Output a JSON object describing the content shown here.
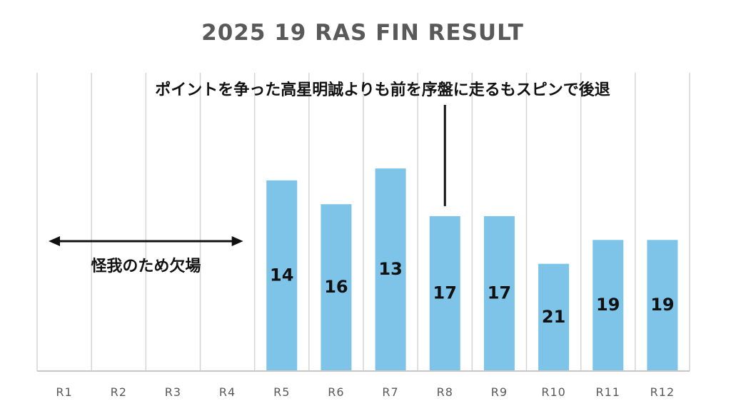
{
  "chart_data": {
    "type": "bar",
    "title": "2025 19 RAS FIN RESULT",
    "xlabel": "",
    "ylabel": "",
    "categories": [
      "R1",
      "R2",
      "R3",
      "R4",
      "R5",
      "R6",
      "R7",
      "R8",
      "R9",
      "R10",
      "R11",
      "R12"
    ],
    "values": [
      null,
      null,
      null,
      null,
      14,
      16,
      13,
      17,
      17,
      21,
      19,
      19
    ],
    "ylim": [
      0,
      30
    ],
    "y_direction": "reversed (lower finishing position = taller bar)",
    "grid": "vertical lines between categories",
    "bar_color": "#7dc4e8",
    "data_labels": true,
    "annotations": [
      {
        "text": "怪我のため欠場",
        "style": "double-headed arrow",
        "span": [
          "R1",
          "R4"
        ]
      },
      {
        "text": "ポイントを争った高星明誠よりも前を序盤に走るもスピンで後退",
        "style": "callout line",
        "target": "R8"
      }
    ]
  }
}
